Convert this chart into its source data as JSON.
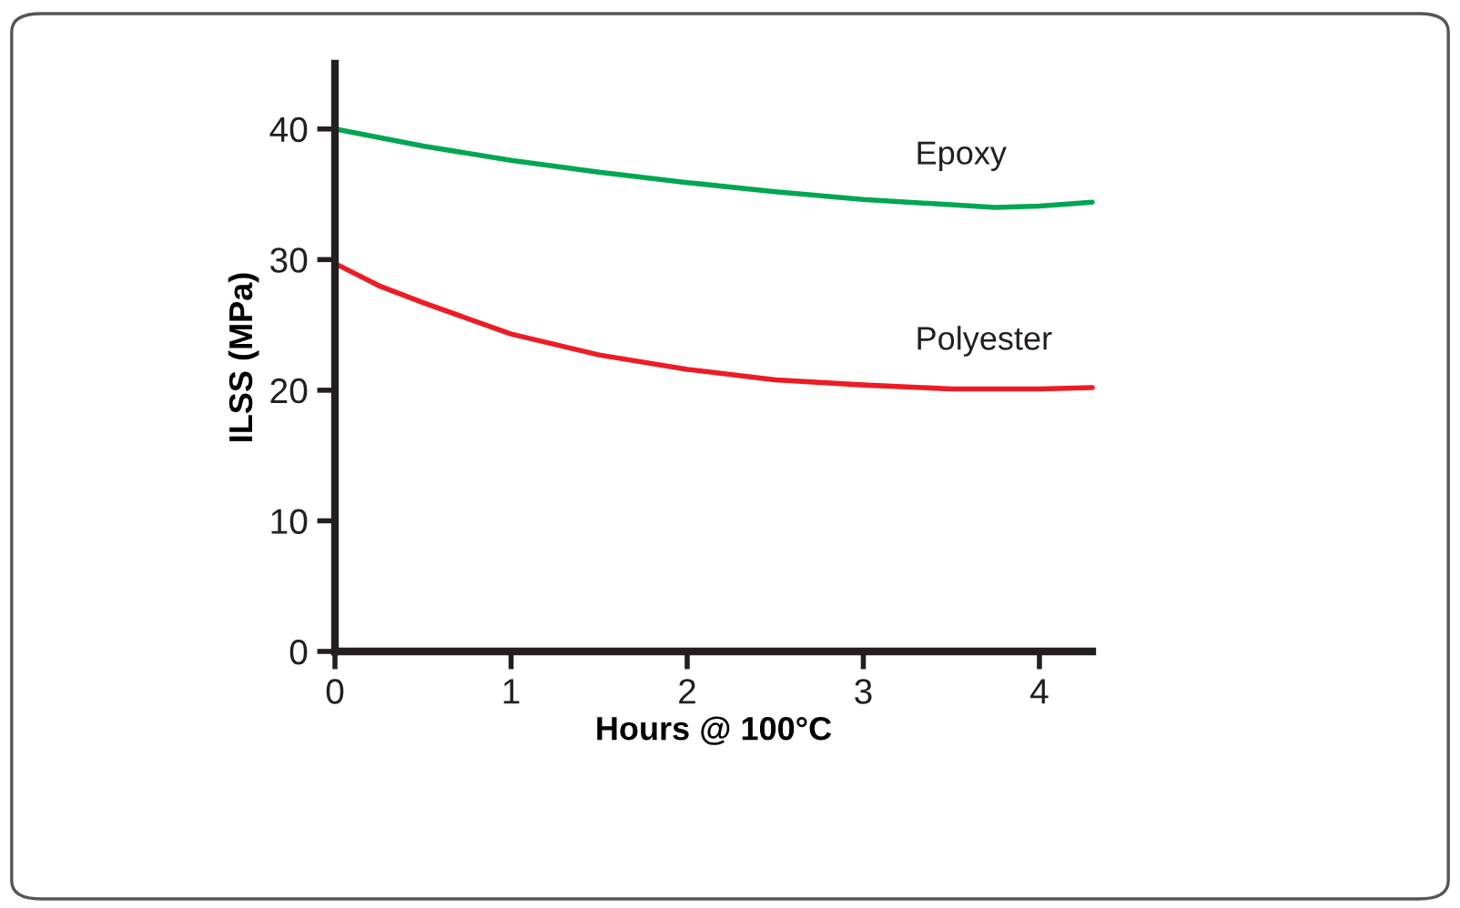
{
  "chart_data": {
    "type": "line",
    "xlabel": "Hours @ 100°C",
    "ylabel": "ILSS (MPa)",
    "xlim": [
      0,
      4.3
    ],
    "ylim": [
      0,
      45
    ],
    "xticks": [
      0,
      1,
      2,
      3,
      4
    ],
    "yticks": [
      0,
      10,
      20,
      30,
      40
    ],
    "grid": false,
    "legend": false,
    "marker": "none",
    "line_style": "solid",
    "series": [
      {
        "name": "Epoxy",
        "color": "#00a651",
        "x": [
          0,
          0.5,
          1,
          1.5,
          2,
          2.5,
          3,
          3.5,
          3.75,
          4,
          4.3
        ],
        "values": [
          40,
          38.7,
          37.6,
          36.7,
          35.9,
          35.2,
          34.6,
          34.2,
          34.0,
          34.1,
          34.4
        ]
      },
      {
        "name": "Polyester",
        "color": "#ed1c24",
        "x": [
          0,
          0.25,
          0.5,
          1,
          1.5,
          2,
          2.5,
          3,
          3.5,
          4,
          4.3
        ],
        "values": [
          29.7,
          28.0,
          26.7,
          24.3,
          22.7,
          21.6,
          20.8,
          20.4,
          20.1,
          20.1,
          20.2
        ]
      }
    ]
  }
}
